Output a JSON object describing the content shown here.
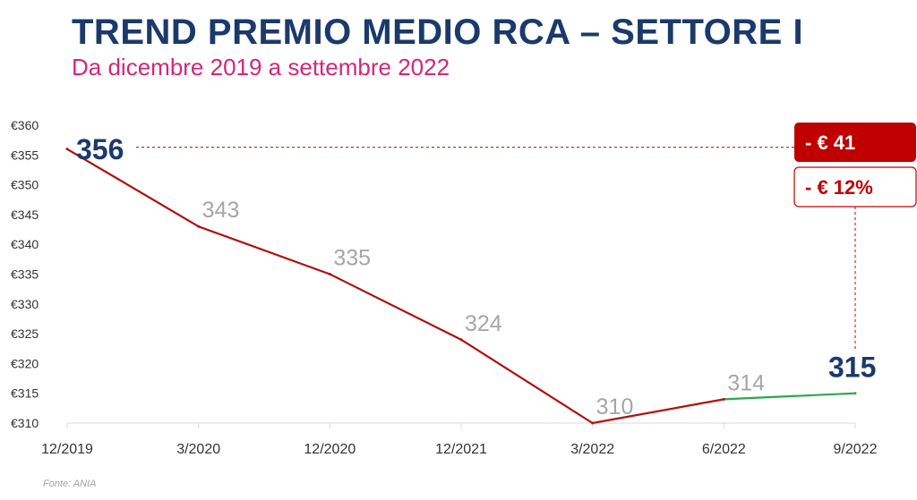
{
  "header": {
    "title": "TREND PREMIO MEDIO RCA – SETTORE I",
    "subtitle": "Da dicembre 2019 a settembre 2022"
  },
  "source": "Fonte: ANIA",
  "badges": {
    "abs_change": "- € 41",
    "pct_change": "- € 12%"
  },
  "colors": {
    "title": "#1b3a6b",
    "subtitle": "#d4267a",
    "line_main": "#b01010",
    "line_last": "#2aa84a",
    "badge": "#c00000"
  },
  "chart_data": {
    "type": "line",
    "categories": [
      "12/2019",
      "3/2020",
      "12/2020",
      "12/2021",
      "3/2022",
      "6/2022",
      "9/2022"
    ],
    "values": [
      356,
      343,
      335,
      324,
      310,
      314,
      315
    ],
    "data_labels": [
      "356",
      "343",
      "335",
      "324",
      "310",
      "314",
      "315"
    ],
    "ylim": [
      310,
      360
    ],
    "yticks": [
      310,
      315,
      320,
      325,
      330,
      335,
      340,
      345,
      350,
      355,
      360
    ],
    "ytick_labels": [
      "€310",
      "€315",
      "€320",
      "€325",
      "€330",
      "€335",
      "€340",
      "€345",
      "€350",
      "€355",
      "€360"
    ],
    "grid": false
  }
}
